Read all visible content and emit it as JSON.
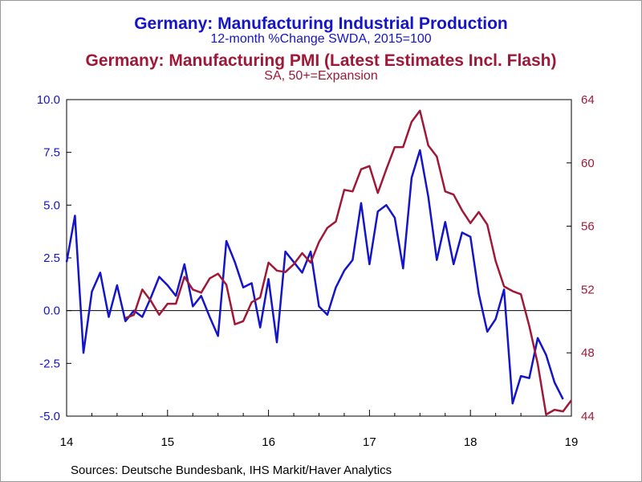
{
  "title_ip": "Germany: Manufacturing Industrial Production",
  "subtitle_ip": "12-month %Change     SWDA, 2015=100",
  "title_pmi": "Germany: Manufacturing PMI (Latest Estimates Incl. Flash)",
  "subtitle_pmi": "SA, 50+=Expansion",
  "source": "Sources:  Deutsche Bundesbank, IHS Markit/Haver Analytics",
  "colors": {
    "ip": "#1414c8",
    "pmi": "#a01838",
    "plot_bg": "#ffffff"
  },
  "chart_data": {
    "type": "line",
    "x_ticks": [
      "14",
      "15",
      "16",
      "17",
      "18",
      "19"
    ],
    "x_domain": [
      2014.0,
      2019.0
    ],
    "y_left": {
      "ticks": [
        "10.0",
        "7.5",
        "5.0",
        "2.5",
        "0.0",
        "-2.5",
        "-5.0"
      ],
      "range": [
        -5.0,
        10.0
      ],
      "color": "#1414c8"
    },
    "y_right": {
      "ticks": [
        "64",
        "60",
        "56",
        "52",
        "48",
        "44"
      ],
      "range": [
        44,
        64
      ],
      "color": "#a01838"
    },
    "reference_line": {
      "axis": "left",
      "value": 0.0
    },
    "grid": false,
    "series": [
      {
        "axis": "left",
        "color": "#1414c8",
        "points": [
          [
            2014.0,
            2.3
          ],
          [
            2014.083,
            4.5
          ],
          [
            2014.167,
            -2.0
          ],
          [
            2014.25,
            0.9
          ],
          [
            2014.333,
            1.8
          ],
          [
            2014.417,
            -0.3
          ],
          [
            2014.5,
            1.2
          ],
          [
            2014.583,
            -0.5
          ],
          [
            2014.667,
            0.0
          ],
          [
            2014.75,
            -0.3
          ],
          [
            2014.833,
            0.6
          ],
          [
            2014.917,
            1.6
          ],
          [
            2015.0,
            1.2
          ],
          [
            2015.083,
            0.7
          ],
          [
            2015.167,
            2.2
          ],
          [
            2015.25,
            0.2
          ],
          [
            2015.333,
            0.7
          ],
          [
            2015.417,
            -0.3
          ],
          [
            2015.5,
            -1.2
          ],
          [
            2015.583,
            3.3
          ],
          [
            2015.667,
            2.3
          ],
          [
            2015.75,
            1.1
          ],
          [
            2015.833,
            1.3
          ],
          [
            2015.917,
            -0.8
          ],
          [
            2016.0,
            1.5
          ],
          [
            2016.083,
            -1.5
          ],
          [
            2016.167,
            2.8
          ],
          [
            2016.25,
            2.3
          ],
          [
            2016.333,
            1.8
          ],
          [
            2016.417,
            2.8
          ],
          [
            2016.5,
            0.2
          ],
          [
            2016.583,
            -0.2
          ],
          [
            2016.667,
            1.1
          ],
          [
            2016.75,
            1.9
          ],
          [
            2016.833,
            2.4
          ],
          [
            2016.917,
            5.1
          ],
          [
            2017.0,
            2.2
          ],
          [
            2017.083,
            4.7
          ],
          [
            2017.167,
            5.0
          ],
          [
            2017.25,
            4.4
          ],
          [
            2017.333,
            2.0
          ],
          [
            2017.417,
            6.3
          ],
          [
            2017.5,
            7.6
          ],
          [
            2017.583,
            5.4
          ],
          [
            2017.667,
            2.4
          ],
          [
            2017.75,
            4.2
          ],
          [
            2017.833,
            2.2
          ],
          [
            2017.917,
            3.7
          ],
          [
            2018.0,
            3.5
          ],
          [
            2018.083,
            0.8
          ],
          [
            2018.167,
            -1.0
          ],
          [
            2018.25,
            -0.4
          ],
          [
            2018.333,
            1.0
          ],
          [
            2018.417,
            -4.4
          ],
          [
            2018.5,
            -3.1
          ],
          [
            2018.583,
            -3.2
          ],
          [
            2018.667,
            -1.3
          ],
          [
            2018.75,
            -2.1
          ],
          [
            2018.833,
            -3.4
          ],
          [
            2018.917,
            -4.2
          ]
        ]
      },
      {
        "axis": "right",
        "color": "#a01838",
        "points": [
          [
            2014.583,
            50.2
          ],
          [
            2014.667,
            50.4
          ],
          [
            2014.75,
            52.0
          ],
          [
            2014.833,
            51.3
          ],
          [
            2014.917,
            50.4
          ],
          [
            2015.0,
            51.1
          ],
          [
            2015.083,
            51.1
          ],
          [
            2015.167,
            52.8
          ],
          [
            2015.25,
            52.0
          ],
          [
            2015.333,
            51.8
          ],
          [
            2015.417,
            52.7
          ],
          [
            2015.5,
            53.0
          ],
          [
            2015.583,
            52.3
          ],
          [
            2015.667,
            49.8
          ],
          [
            2015.75,
            50.0
          ],
          [
            2015.833,
            51.2
          ],
          [
            2015.917,
            51.5
          ],
          [
            2016.0,
            53.7
          ],
          [
            2016.083,
            53.2
          ],
          [
            2016.167,
            53.1
          ],
          [
            2016.25,
            53.6
          ],
          [
            2016.333,
            54.3
          ],
          [
            2016.417,
            53.7
          ],
          [
            2016.5,
            55.0
          ],
          [
            2016.583,
            55.9
          ],
          [
            2016.667,
            56.3
          ],
          [
            2016.75,
            58.3
          ],
          [
            2016.833,
            58.2
          ],
          [
            2016.917,
            59.6
          ],
          [
            2017.0,
            59.8
          ],
          [
            2017.083,
            58.1
          ],
          [
            2017.167,
            59.6
          ],
          [
            2017.25,
            61.0
          ],
          [
            2017.333,
            61.0
          ],
          [
            2017.417,
            62.6
          ],
          [
            2017.5,
            63.3
          ],
          [
            2017.583,
            61.1
          ],
          [
            2017.667,
            60.4
          ],
          [
            2017.75,
            58.2
          ],
          [
            2017.833,
            58.0
          ],
          [
            2017.917,
            57.0
          ],
          [
            2018.0,
            56.2
          ],
          [
            2018.083,
            56.9
          ],
          [
            2018.167,
            56.1
          ],
          [
            2018.25,
            53.8
          ],
          [
            2018.333,
            52.2
          ],
          [
            2018.417,
            51.9
          ],
          [
            2018.5,
            51.7
          ],
          [
            2018.583,
            49.7
          ],
          [
            2018.667,
            47.3
          ],
          [
            2018.75,
            44.1
          ],
          [
            2018.833,
            44.4
          ],
          [
            2018.917,
            44.3
          ],
          [
            2019.0,
            45.0
          ]
        ]
      }
    ]
  }
}
